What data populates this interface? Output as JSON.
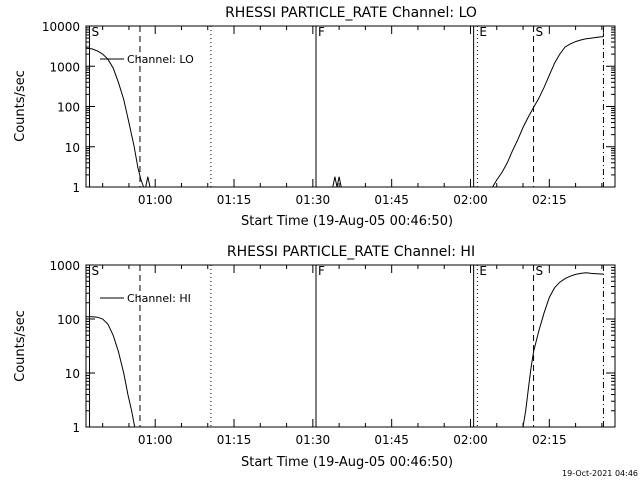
{
  "footer_timestamp": "19-Oct-2021 04:46",
  "chart_data": [
    {
      "type": "line",
      "title": "RHESSI PARTICLE_RATE Channel: LO",
      "xlabel": "Start Time (19-Aug-05 00:46:50)",
      "ylabel": "Counts/sec",
      "yscale": "log",
      "ylim": [
        1,
        10000
      ],
      "xlim_minutes": [
        46.83,
        147.5
      ],
      "x_ticks": [
        {
          "min": 60,
          "label": "01:00"
        },
        {
          "min": 75,
          "label": "01:15"
        },
        {
          "min": 90,
          "label": "01:30"
        },
        {
          "min": 105,
          "label": "01:45"
        },
        {
          "min": 120,
          "label": "02:00"
        },
        {
          "min": 135,
          "label": "02:15"
        }
      ],
      "y_ticks": [
        {
          "v": 1,
          "label": "1"
        },
        {
          "v": 10,
          "label": "10"
        },
        {
          "v": 100,
          "label": "100"
        },
        {
          "v": 1000,
          "label": "1000"
        },
        {
          "v": 10000,
          "label": "10000"
        }
      ],
      "legend": "Channel: LO",
      "markers": [
        {
          "min": 47.5,
          "style": "solid",
          "label": "S"
        },
        {
          "min": 57.1,
          "style": "dashed",
          "label": ""
        },
        {
          "min": 70.6,
          "style": "dotted",
          "label": ""
        },
        {
          "min": 90.6,
          "style": "solid",
          "label": "F"
        },
        {
          "min": 120.6,
          "style": "solid",
          "label": ""
        },
        {
          "min": 121.3,
          "style": "dotted",
          "label": "E"
        },
        {
          "min": 132.0,
          "style": "dashed",
          "label": "S"
        },
        {
          "min": 145.3,
          "style": "dashdot",
          "label": ""
        }
      ],
      "segments": [
        [
          [
            46.9,
            2800
          ],
          [
            48,
            2700
          ],
          [
            49,
            2400
          ],
          [
            50,
            2000
          ],
          [
            51,
            1500
          ],
          [
            52,
            900
          ],
          [
            53,
            400
          ],
          [
            54,
            150
          ],
          [
            55,
            40
          ],
          [
            56,
            10
          ],
          [
            56.7,
            3
          ],
          [
            57.3,
            1.5
          ],
          [
            57.8,
            1
          ]
        ],
        [
          [
            58.2,
            1
          ],
          [
            58.6,
            1.8
          ],
          [
            59,
            1
          ]
        ],
        [
          [
            93.8,
            1
          ],
          [
            94.2,
            1.8
          ],
          [
            94.6,
            1
          ],
          [
            95.0,
            1.8
          ],
          [
            95.4,
            1
          ]
        ],
        [
          [
            124.2,
            1
          ],
          [
            125,
            1.5
          ],
          [
            126,
            2.3
          ],
          [
            127,
            4
          ],
          [
            128,
            8
          ],
          [
            129,
            15
          ],
          [
            130,
            30
          ],
          [
            131,
            55
          ],
          [
            132,
            95
          ],
          [
            133,
            160
          ],
          [
            134,
            300
          ],
          [
            135,
            600
          ],
          [
            136,
            1200
          ],
          [
            137,
            2000
          ],
          [
            138,
            3000
          ],
          [
            139,
            3600
          ],
          [
            140,
            4100
          ],
          [
            141,
            4500
          ],
          [
            142,
            4800
          ],
          [
            143,
            5000
          ],
          [
            144,
            5200
          ],
          [
            145,
            5400
          ],
          [
            145.3,
            5500
          ],
          [
            145.3,
            7000
          ]
        ]
      ]
    },
    {
      "type": "line",
      "title": "RHESSI PARTICLE_RATE Channel: HI",
      "xlabel": "Start Time (19-Aug-05 00:46:50)",
      "ylabel": "Counts/sec",
      "yscale": "log",
      "ylim": [
        1,
        1000
      ],
      "xlim_minutes": [
        46.83,
        147.5
      ],
      "x_ticks": [
        {
          "min": 60,
          "label": "01:00"
        },
        {
          "min": 75,
          "label": "01:15"
        },
        {
          "min": 90,
          "label": "01:30"
        },
        {
          "min": 105,
          "label": "01:45"
        },
        {
          "min": 120,
          "label": "02:00"
        },
        {
          "min": 135,
          "label": "02:15"
        }
      ],
      "y_ticks": [
        {
          "v": 1,
          "label": "1"
        },
        {
          "v": 10,
          "label": "10"
        },
        {
          "v": 100,
          "label": "100"
        },
        {
          "v": 1000,
          "label": "1000"
        }
      ],
      "legend": "Channel: HI",
      "markers": [
        {
          "min": 47.5,
          "style": "solid",
          "label": "S"
        },
        {
          "min": 57.1,
          "style": "dashed",
          "label": ""
        },
        {
          "min": 70.6,
          "style": "dotted",
          "label": ""
        },
        {
          "min": 90.6,
          "style": "solid",
          "label": "F"
        },
        {
          "min": 120.6,
          "style": "solid",
          "label": ""
        },
        {
          "min": 121.3,
          "style": "dotted",
          "label": "E"
        },
        {
          "min": 132.0,
          "style": "dashed",
          "label": "S"
        },
        {
          "min": 145.3,
          "style": "dashdot",
          "label": ""
        }
      ],
      "segments": [
        [
          [
            46.9,
            110
          ],
          [
            48,
            110
          ],
          [
            49,
            108
          ],
          [
            50,
            100
          ],
          [
            51,
            80
          ],
          [
            52,
            50
          ],
          [
            53,
            25
          ],
          [
            54,
            10
          ],
          [
            54.8,
            4
          ],
          [
            55.5,
            2
          ],
          [
            56.1,
            1
          ]
        ],
        [
          [
            130.0,
            1
          ],
          [
            130.5,
            2
          ],
          [
            131,
            5
          ],
          [
            131.5,
            12
          ],
          [
            132,
            25
          ],
          [
            133,
            60
          ],
          [
            134,
            130
          ],
          [
            135,
            250
          ],
          [
            136,
            380
          ],
          [
            137,
            480
          ],
          [
            138,
            560
          ],
          [
            139,
            620
          ],
          [
            140,
            670
          ],
          [
            141,
            700
          ],
          [
            142,
            720
          ],
          [
            143,
            700
          ],
          [
            144,
            690
          ],
          [
            145,
            680
          ],
          [
            145.3,
            680
          ]
        ]
      ]
    }
  ]
}
